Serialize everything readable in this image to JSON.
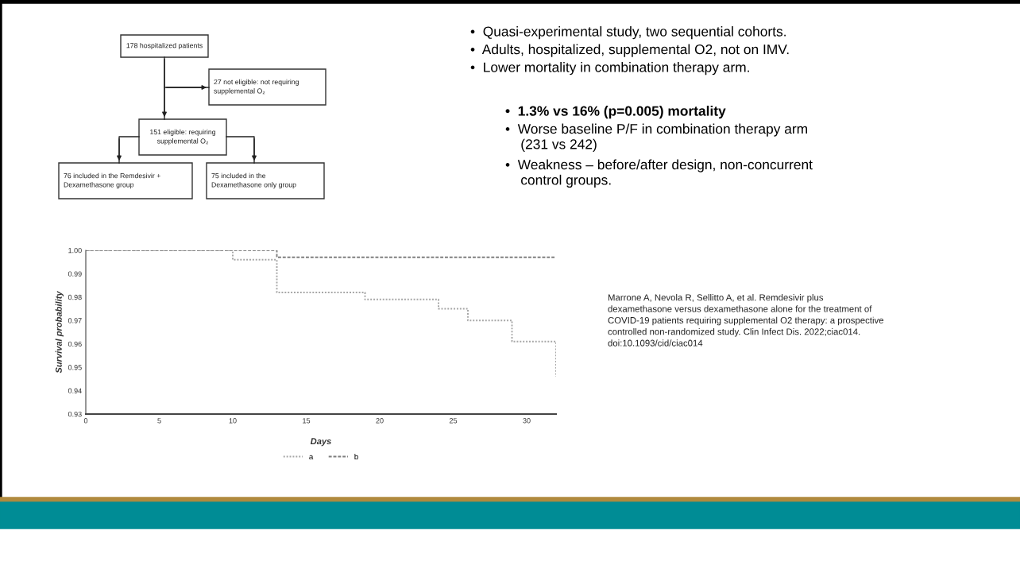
{
  "chart_data": [
    {
      "type": "other",
      "annotations": [
        "178 hospitalized patients",
        "27 not eligible: not requiring\nsupplemental O₂",
        "151 eligible: requiring\nsupplemental O₂",
        "76 included in the Remdesivir +\nDexamethasone group",
        "75 included in the\nDexamethasone only group"
      ]
    },
    {
      "type": "other",
      "annotations": [
        "•  Quasi-experimental study, two sequential cohorts.",
        "•  Adults, hospitalized, supplemental O2, not on IMV.",
        "•  Lower mortality in combination therapy arm."
      ]
    },
    {
      "type": "other",
      "annotations": [
        "•  1.3% vs 16% (p=0.005) mortality",
        "•  Worse baseline P/F in combination therapy arm\n    (231 vs 242)",
        "•  Weakness – before/after design, non-concurrent\n    control groups."
      ]
    },
    {
      "type": "step",
      "xlabel": "Days",
      "ylabel": "Survival probability",
      "xlim": [
        0,
        32
      ],
      "xticks": [
        0,
        5,
        10,
        15,
        20,
        25,
        30
      ],
      "ylim": [
        0.93,
        1.0
      ],
      "yticks": [
        {
          "value": 0.93,
          "label": "0.93"
        },
        {
          "value": 0.94,
          "label": "0.94"
        },
        {
          "value": 0.95,
          "label": "0.95"
        },
        {
          "value": 0.96,
          "label": "0.96"
        },
        {
          "value": 0.97,
          "label": "0.97"
        },
        {
          "value": 0.98,
          "label": "0.98"
        },
        {
          "value": 0.99,
          "label": "0.99"
        },
        {
          "value": 1.0,
          "label": "1.00"
        }
      ],
      "grid": false,
      "legend": "bottom",
      "series": [
        {
          "name": "a",
          "color": "#a6a6a6",
          "line_style": "dotted",
          "x": [
            0,
            10,
            13,
            19,
            24,
            26,
            29,
            32
          ],
          "values": [
            1.0,
            0.996,
            0.982,
            0.979,
            0.975,
            0.97,
            0.961,
            0.946
          ]
        },
        {
          "name": "b",
          "color": "#7f7f7f",
          "line_style": "dashed",
          "x": [
            0,
            13,
            32
          ],
          "values": [
            1.0,
            0.997,
            0.997
          ]
        }
      ],
      "annotations": [
        "Marrone A, Nevola R, Sellitto A, et al. Remdesivir plus\ndexamethasone versus dexamethasone alone for the treatment of\nCOVID-19 patients requiring supplemental O2 therapy: a prospective\ncontrolled non-randomized study. Clin Infect Dis. 2022;ciac014.\ndoi:10.1093/cid/ciac014"
      ]
    }
  ]
}
